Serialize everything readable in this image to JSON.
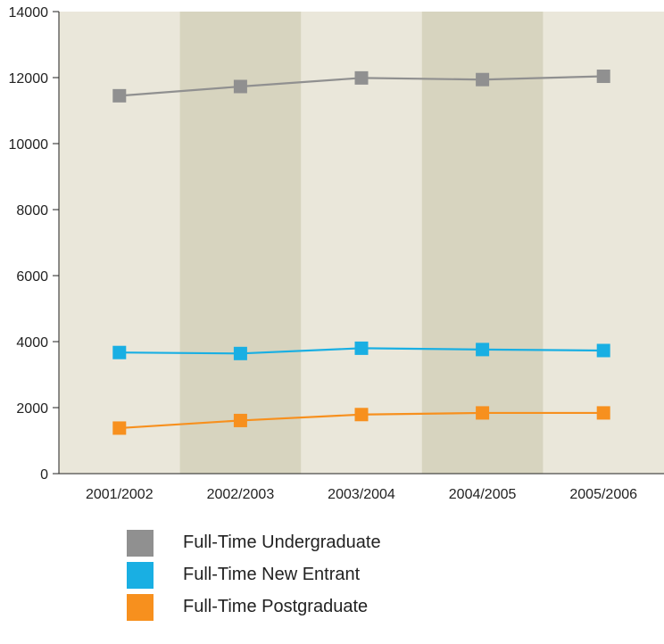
{
  "chart_data": {
    "type": "line",
    "categories": [
      "2001/2002",
      "2002/2003",
      "2003/2004",
      "2004/2005",
      "2005/2006"
    ],
    "ylim": [
      0,
      14000
    ],
    "yticks": [
      0,
      2000,
      4000,
      6000,
      8000,
      10000,
      12000,
      14000
    ],
    "band_colors": [
      "#eae7da",
      "#d7d4bf"
    ],
    "series": [
      {
        "name": "Full-Time Undergraduate",
        "color": "#909090",
        "values": [
          11450,
          11730,
          11990,
          11940,
          12040
        ]
      },
      {
        "name": "Full-Time New Entrant",
        "color": "#19afe3",
        "values": [
          3670,
          3640,
          3800,
          3760,
          3730
        ]
      },
      {
        "name": "Full-Time Postgraduate",
        "color": "#f7901e",
        "values": [
          1380,
          1610,
          1790,
          1840,
          1840
        ]
      }
    ],
    "legend_position": "bottom"
  }
}
